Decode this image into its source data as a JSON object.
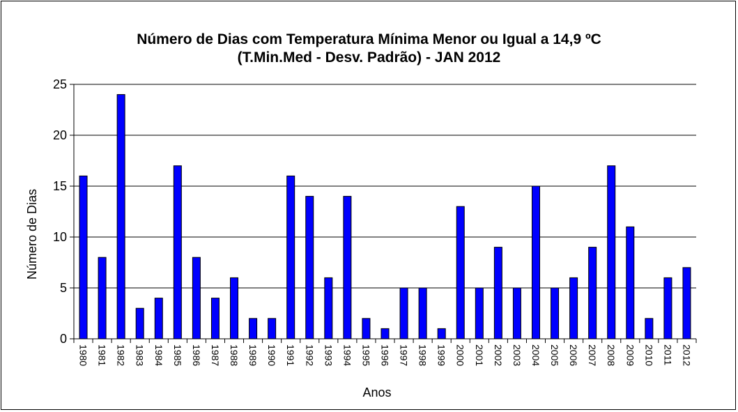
{
  "chart_data": {
    "type": "bar",
    "title": "Número de Dias com Temperatura Mínima Menor ou Igual a 14,9 ºC",
    "subtitle": "(T.Min.Med - Desv. Padrão) - JAN 2012",
    "xlabel": "Anos",
    "ylabel": "Número de Dias",
    "ylim": [
      0,
      25
    ],
    "yticks": [
      0,
      5,
      10,
      15,
      20,
      25
    ],
    "grid": true,
    "legend": "none",
    "bar_color": "#0000ff",
    "categories": [
      "1980",
      "1981",
      "1982",
      "1983",
      "1984",
      "1985",
      "1986",
      "1987",
      "1988",
      "1989",
      "1990",
      "1991",
      "1992",
      "1993",
      "1994",
      "1995",
      "1996",
      "1997",
      "1998",
      "1999",
      "2000",
      "2001",
      "2002",
      "2003",
      "2004",
      "2005",
      "2006",
      "2007",
      "2008",
      "2009",
      "2010",
      "2011",
      "2012"
    ],
    "values": [
      16,
      8,
      24,
      3,
      4,
      17,
      8,
      4,
      6,
      2,
      2,
      16,
      14,
      6,
      14,
      2,
      1,
      5,
      5,
      1,
      13,
      5,
      9,
      5,
      15,
      5,
      6,
      9,
      17,
      11,
      2,
      6,
      7
    ]
  }
}
